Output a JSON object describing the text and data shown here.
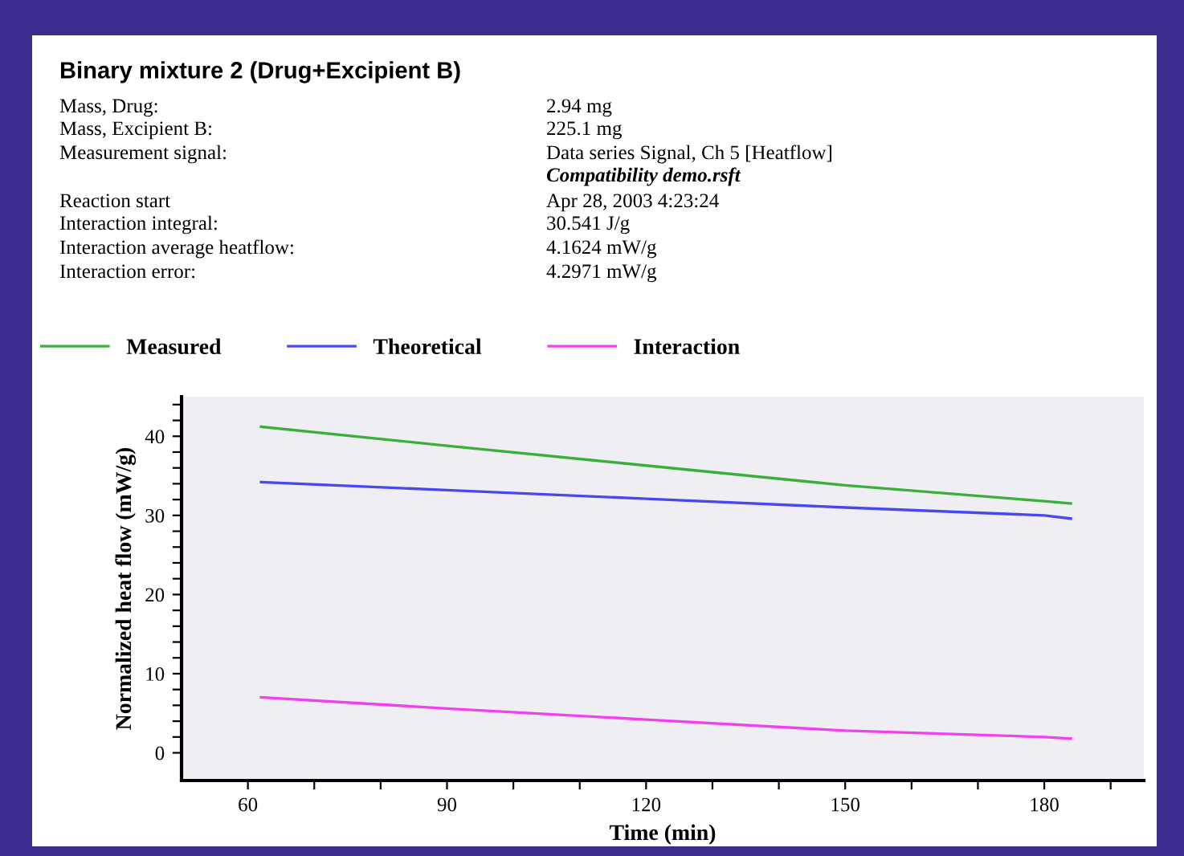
{
  "chart_data": {
    "type": "line",
    "title": "Binary mixture 2 (Drug+Excipient B)",
    "annotations": [
      "Mass, Drug:",
      "2.94 mg",
      "Mass, Excipient B:",
      "225.1 mg",
      "Measurement signal:",
      "Data series Signal, Ch 5 [Heatflow]",
      "Compatibility demo.rsft",
      "Reaction start",
      "Apr 28, 2003 4:23:24",
      "Interaction integral:",
      "30.541 J/g",
      "Interaction average heatflow:",
      "4.1624 mW/g",
      "Interaction error:",
      "4.2971 mW/g"
    ],
    "xlabel": "Time (min)",
    "ylabel": "Normalized heat flow (mW/g)",
    "x": [
      62,
      90,
      120,
      150,
      180,
      184
    ],
    "series": [
      {
        "name": "Measured",
        "color": "#3cae3c",
        "values": [
          41.2,
          38.8,
          36.3,
          33.8,
          31.8,
          31.5
        ]
      },
      {
        "name": "Theoretical",
        "color": "#4848f0",
        "values": [
          34.2,
          33.2,
          32.1,
          31.0,
          30.0,
          29.6
        ]
      },
      {
        "name": "Interaction",
        "color": "#f040f0",
        "values": [
          7.0,
          5.6,
          4.2,
          2.8,
          2.0,
          1.8
        ]
      }
    ],
    "xlim": [
      50,
      195
    ],
    "ylim": [
      -3.5,
      45
    ],
    "xticks": [
      60,
      {
        "value": 70,
        "label": null
      },
      {
        "value": 80,
        "label": null
      },
      90,
      {
        "value": 100,
        "label": null
      },
      {
        "value": 110,
        "label": null
      },
      120,
      {
        "value": 130,
        "label": null
      },
      {
        "value": 140,
        "label": null
      },
      150,
      {
        "value": 160,
        "label": null
      },
      {
        "value": 170,
        "label": null
      },
      180,
      {
        "value": 190,
        "label": null
      }
    ],
    "yticks": [
      0,
      {
        "value": 2,
        "label": null
      },
      {
        "value": 4,
        "label": null
      },
      {
        "value": 6,
        "label": null
      },
      {
        "value": 8,
        "label": null
      },
      10,
      {
        "value": 12,
        "label": null
      },
      {
        "value": 14,
        "label": null
      },
      {
        "value": 16,
        "label": null
      },
      {
        "value": 18,
        "label": null
      },
      20,
      {
        "value": 22,
        "label": null
      },
      {
        "value": 24,
        "label": null
      },
      {
        "value": 26,
        "label": null
      },
      {
        "value": 28,
        "label": null
      },
      30,
      {
        "value": 32,
        "label": null
      },
      {
        "value": 34,
        "label": null
      },
      {
        "value": 36,
        "label": null
      },
      {
        "value": 38,
        "label": null
      },
      40,
      {
        "value": 42,
        "label": null
      },
      {
        "value": 44,
        "label": null
      }
    ],
    "grid": false,
    "legend": "top",
    "marker": "none",
    "line_style": "solid"
  }
}
